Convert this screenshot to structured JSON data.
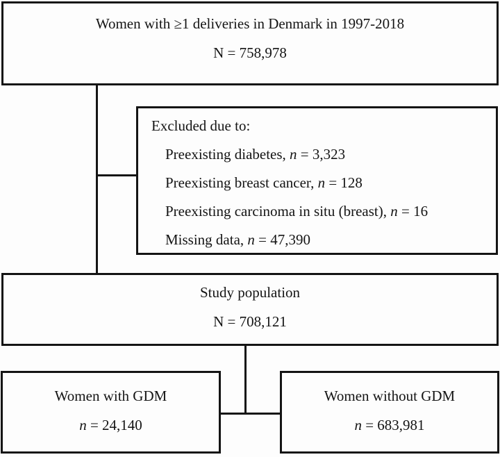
{
  "flowchart": {
    "top_box": {
      "line1": "Women with ≥1 deliveries in Denmark in 1997-2018",
      "line2": "N = 758,978"
    },
    "excluded_box": {
      "header": "Excluded due to:",
      "items": [
        {
          "text": "Preexisting diabetes, ",
          "var": "n",
          "value": " = 3,323"
        },
        {
          "text": "Preexisting breast cancer, ",
          "var": "n",
          "value": " = 128"
        },
        {
          "text": "Preexisting carcinoma in situ (breast), ",
          "var": "n",
          "value": " = 16"
        },
        {
          "text": "Missing data, ",
          "var": "n",
          "value": " = 47,390"
        }
      ]
    },
    "study_box": {
      "line1": "Study population",
      "line2": "N = 708,121"
    },
    "gdm_box": {
      "line1": "Women with GDM",
      "var": "n",
      "value": " = 24,140"
    },
    "no_gdm_box": {
      "line1": "Women without GDM",
      "var": "n",
      "value": " = 683,981"
    },
    "colors": {
      "border": "#141414",
      "background": "#fdfdfd",
      "text": "#141414"
    }
  }
}
